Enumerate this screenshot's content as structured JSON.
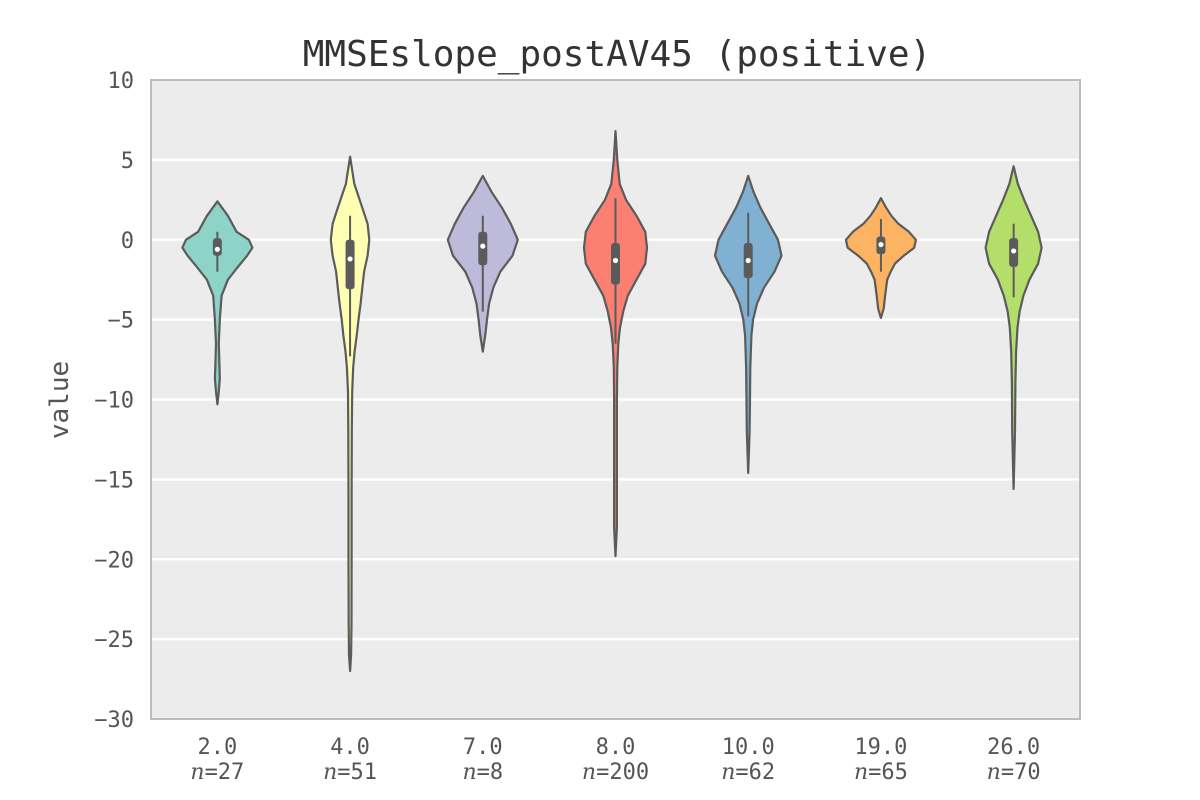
{
  "chart_data": {
    "type": "violin",
    "title": "MMSEslope_postAV45 (positive)",
    "xlabel": "",
    "ylabel": "value",
    "ylim": [
      -30,
      10
    ],
    "yticks": [
      10,
      5,
      0,
      -5,
      -10,
      -15,
      -20,
      -25,
      -30
    ],
    "ytick_labels": [
      "10",
      "5",
      "0",
      "−5",
      "−10",
      "−15",
      "−20",
      "−25",
      "−30"
    ],
    "grid": true,
    "categories": [
      "2.0",
      "4.0",
      "7.0",
      "8.0",
      "10.0",
      "19.0",
      "26.0"
    ],
    "counts": [
      "n=27",
      "n=51",
      "n=8",
      "n=200",
      "n=62",
      "n=65",
      "n=70"
    ],
    "colors": [
      "#8dd3c7",
      "#ffffb3",
      "#bebada",
      "#fb8072",
      "#80b1d3",
      "#fdb462",
      "#b3de69"
    ],
    "series": [
      {
        "category": "2.0",
        "median": -0.6,
        "q1": -1.0,
        "q3": 0.1,
        "whisker_low": -2.0,
        "whisker_high": 0.5,
        "min": -10.3,
        "max": 2.4,
        "profile": [
          [
            2.4,
            0
          ],
          [
            1.5,
            0.3
          ],
          [
            0.5,
            0.55
          ],
          [
            0,
            0.9
          ],
          [
            -0.5,
            1.0
          ],
          [
            -1,
            0.85
          ],
          [
            -1.8,
            0.55
          ],
          [
            -2.5,
            0.3
          ],
          [
            -3.5,
            0.12
          ],
          [
            -5,
            0.07
          ],
          [
            -6.5,
            0.04
          ],
          [
            -8,
            0.06
          ],
          [
            -8.7,
            0.07
          ],
          [
            -9.5,
            0.04
          ],
          [
            -10.3,
            0
          ]
        ]
      },
      {
        "category": "4.0",
        "median": -1.2,
        "q1": -3.1,
        "q3": 0.0,
        "whisker_low": -7.3,
        "whisker_high": 1.5,
        "min": -27.0,
        "max": 5.2,
        "profile": [
          [
            5.2,
            0
          ],
          [
            3.5,
            0.12
          ],
          [
            2,
            0.35
          ],
          [
            1,
            0.5
          ],
          [
            0,
            0.55
          ],
          [
            -1,
            0.5
          ],
          [
            -2,
            0.4
          ],
          [
            -3,
            0.35
          ],
          [
            -4,
            0.3
          ],
          [
            -5,
            0.24
          ],
          [
            -6,
            0.19
          ],
          [
            -7,
            0.13
          ],
          [
            -8,
            0.09
          ],
          [
            -9.5,
            0.06
          ],
          [
            -12,
            0.05
          ],
          [
            -16,
            0.045
          ],
          [
            -20,
            0.045
          ],
          [
            -24,
            0.04
          ],
          [
            -26,
            0.03
          ],
          [
            -27,
            0
          ]
        ]
      },
      {
        "category": "7.0",
        "median": -0.4,
        "q1": -1.6,
        "q3": 0.5,
        "whisker_low": -4.5,
        "whisker_high": 1.5,
        "min": -7.0,
        "max": 4.0,
        "profile": [
          [
            4,
            0
          ],
          [
            3,
            0.25
          ],
          [
            2,
            0.55
          ],
          [
            1,
            0.8
          ],
          [
            0,
            1.0
          ],
          [
            -1,
            0.85
          ],
          [
            -2,
            0.5
          ],
          [
            -3,
            0.3
          ],
          [
            -4,
            0.18
          ],
          [
            -5,
            0.12
          ],
          [
            -6,
            0.07
          ],
          [
            -7,
            0
          ]
        ]
      },
      {
        "category": "8.0",
        "median": -1.3,
        "q1": -2.8,
        "q3": -0.2,
        "whisker_low": -6.5,
        "whisker_high": 2.6,
        "min": -19.8,
        "max": 6.8,
        "profile": [
          [
            6.8,
            0
          ],
          [
            5,
            0.05
          ],
          [
            3.5,
            0.12
          ],
          [
            2.5,
            0.3
          ],
          [
            1.5,
            0.6
          ],
          [
            0.5,
            0.85
          ],
          [
            -0.5,
            0.9
          ],
          [
            -1.5,
            0.85
          ],
          [
            -2.5,
            0.6
          ],
          [
            -3.5,
            0.35
          ],
          [
            -4.5,
            0.22
          ],
          [
            -5.5,
            0.13
          ],
          [
            -6.5,
            0.08
          ],
          [
            -8,
            0.05
          ],
          [
            -10,
            0.04
          ],
          [
            -14,
            0.04
          ],
          [
            -18,
            0.04
          ],
          [
            -19.8,
            0
          ]
        ]
      },
      {
        "category": "10.0",
        "median": -1.3,
        "q1": -2.4,
        "q3": -0.2,
        "whisker_low": -4.8,
        "whisker_high": 1.7,
        "min": -14.6,
        "max": 4.0,
        "profile": [
          [
            4,
            0
          ],
          [
            3,
            0.15
          ],
          [
            2,
            0.35
          ],
          [
            1,
            0.6
          ],
          [
            0,
            0.85
          ],
          [
            -1,
            0.95
          ],
          [
            -2,
            0.75
          ],
          [
            -3,
            0.45
          ],
          [
            -4,
            0.25
          ],
          [
            -5,
            0.14
          ],
          [
            -6,
            0.09
          ],
          [
            -8,
            0.06
          ],
          [
            -10,
            0.05
          ],
          [
            -12,
            0.04
          ],
          [
            -14.6,
            0
          ]
        ]
      },
      {
        "category": "19.0",
        "median": -0.3,
        "q1": -0.9,
        "q3": 0.2,
        "whisker_low": -2.0,
        "whisker_high": 1.3,
        "min": -4.9,
        "max": 2.6,
        "profile": [
          [
            2.6,
            0
          ],
          [
            2,
            0.15
          ],
          [
            1.5,
            0.3
          ],
          [
            1,
            0.5
          ],
          [
            0.5,
            0.8
          ],
          [
            0,
            1.0
          ],
          [
            -0.5,
            0.95
          ],
          [
            -1,
            0.65
          ],
          [
            -1.5,
            0.4
          ],
          [
            -2,
            0.28
          ],
          [
            -2.5,
            0.18
          ],
          [
            -3.5,
            0.12
          ],
          [
            -4.3,
            0.08
          ],
          [
            -4.9,
            0
          ]
        ]
      },
      {
        "category": "26.0",
        "median": -0.7,
        "q1": -1.7,
        "q3": 0.1,
        "whisker_low": -3.6,
        "whisker_high": 1.0,
        "min": -15.6,
        "max": 4.6,
        "profile": [
          [
            4.6,
            0
          ],
          [
            3.5,
            0.12
          ],
          [
            2.5,
            0.3
          ],
          [
            1.5,
            0.5
          ],
          [
            0.5,
            0.7
          ],
          [
            -0.5,
            0.8
          ],
          [
            -1.5,
            0.7
          ],
          [
            -2.5,
            0.45
          ],
          [
            -3.5,
            0.28
          ],
          [
            -4.5,
            0.17
          ],
          [
            -5.5,
            0.11
          ],
          [
            -7,
            0.07
          ],
          [
            -9,
            0.05
          ],
          [
            -12,
            0.04
          ],
          [
            -15.6,
            0
          ]
        ]
      }
    ]
  }
}
